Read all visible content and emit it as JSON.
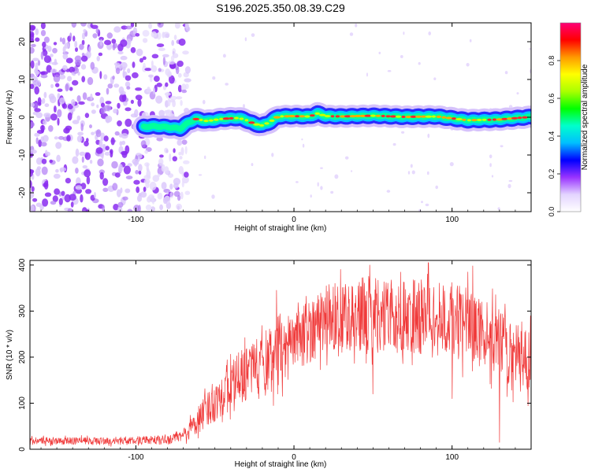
{
  "title": "S196.2025.350.08.39.C29",
  "colors": {
    "snr_line": "#f03a3a",
    "ridge_core": "#ff3030",
    "noise": "#8a2cf0"
  },
  "chart_data": [
    {
      "type": "heatmap",
      "name": "spectrogram",
      "xlabel": "Height of straight line (km)",
      "ylabel": "Frequency (Hz)",
      "xlim": [
        -167,
        150
      ],
      "ylim": [
        -25,
        25
      ],
      "xticks": [
        -100,
        0,
        100
      ],
      "xtick_labels": [
        "-100",
        "0",
        "100"
      ],
      "yticks": [
        -20,
        -10,
        0,
        10,
        20
      ],
      "ytick_labels": [
        "-20",
        "-10",
        "0",
        "10",
        "20"
      ],
      "noise_region_x": [
        -167,
        -67
      ],
      "ridge": {
        "x": [
          -95,
          -88,
          -80,
          -72,
          -67,
          -62,
          -55,
          -45,
          -35,
          -30,
          -25,
          -20,
          -15,
          -10,
          0,
          10,
          15,
          20,
          30,
          50,
          70,
          90,
          110,
          130,
          150
        ],
        "y": [
          -2.5,
          -2.4,
          -2.6,
          -3.0,
          -1.5,
          -0.5,
          -1.0,
          -0.4,
          -0.2,
          -0.8,
          -1.8,
          -2.2,
          -1.2,
          0.2,
          0.3,
          0.2,
          1.0,
          0.3,
          0.2,
          0.4,
          0.1,
          0.2,
          -0.8,
          -0.6,
          0.1
        ],
        "width_hz": 2.4
      },
      "colorbar": {
        "label": "Normalized spectral amplitude",
        "range": [
          0,
          1
        ],
        "ticks": [
          0.0,
          0.2,
          0.4,
          0.6,
          0.8
        ],
        "tick_labels": [
          "0.0",
          "0.2",
          "0.4",
          "0.6",
          "0.8"
        ],
        "colors": [
          "#ffffff",
          "#e3d4ff",
          "#9933ff",
          "#0000ff",
          "#00bfff",
          "#00ffcc",
          "#00ff00",
          "#aaff00",
          "#ffff00",
          "#ff9900",
          "#ff0000",
          "#ff0077"
        ]
      }
    },
    {
      "type": "line",
      "name": "snr",
      "xlabel": "Height of straight line (km)",
      "ylabel": "SNR (10 * v/v)",
      "xlim": [
        -167,
        150
      ],
      "ylim": [
        0,
        410
      ],
      "xticks": [
        -100,
        0,
        100
      ],
      "xtick_labels": [
        "-100",
        "0",
        "100"
      ],
      "yticks": [
        0,
        100,
        200,
        300,
        400
      ],
      "ytick_labels": [
        "0",
        "100",
        "200",
        "300",
        "400"
      ],
      "envelope": {
        "x": [
          -167,
          -120,
          -80,
          -70,
          -60,
          -50,
          -40,
          -30,
          -20,
          -12,
          -10,
          -5,
          0,
          10,
          20,
          30,
          40,
          50,
          60,
          80,
          100,
          110,
          120,
          130,
          140,
          150
        ],
        "mean": [
          18,
          18,
          20,
          30,
          65,
          105,
          140,
          165,
          190,
          200,
          215,
          220,
          230,
          260,
          285,
          290,
          290,
          295,
          290,
          285,
          280,
          270,
          250,
          230,
          205,
          190
        ],
        "amp": [
          8,
          8,
          10,
          15,
          30,
          45,
          55,
          60,
          70,
          75,
          80,
          75,
          65,
          70,
          75,
          80,
          80,
          85,
          80,
          80,
          80,
          80,
          75,
          75,
          70,
          70
        ]
      },
      "spikes": [
        {
          "x": -11,
          "y": 345
        },
        {
          "x": 48,
          "y": 400
        },
        {
          "x": 85,
          "y": 405
        },
        {
          "x": 113,
          "y": 398
        },
        {
          "x": 130,
          "y": 15
        },
        {
          "x": 50,
          "y": 120
        },
        {
          "x": 100,
          "y": 110
        }
      ]
    }
  ]
}
